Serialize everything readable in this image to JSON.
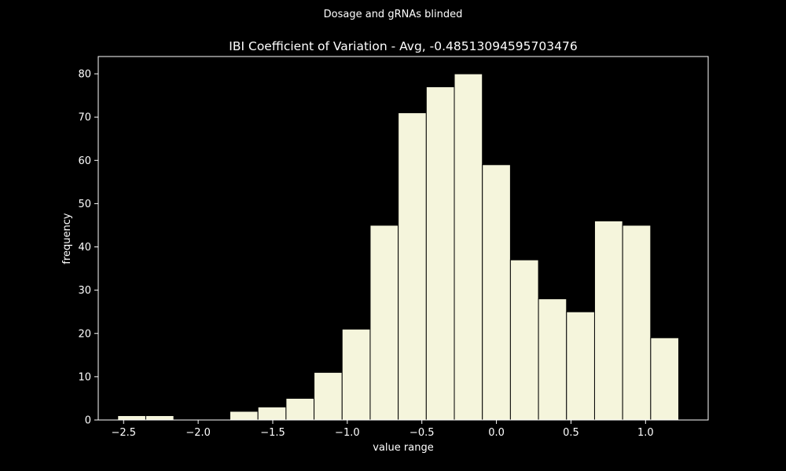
{
  "colors": {
    "background": "#000000",
    "bar_fill": "#f5f5dc",
    "bar_edge": "#000000",
    "axis": "#ffffff",
    "text": "#ffffff"
  },
  "chart_data": {
    "type": "bar",
    "suptitle": "Dosage and gRNAs blinded",
    "title": "IBI Coefficient of Variation - Avg, -0.48513094595703476",
    "xlabel": "value range",
    "ylabel": "frequency",
    "xlim": [
      -2.67,
      1.42
    ],
    "ylim": [
      0,
      84
    ],
    "grid": false,
    "bin_edges": [
      -2.5395,
      -2.3514,
      -2.1633,
      -1.9752,
      -1.7871,
      -1.599,
      -1.4109,
      -1.2228,
      -1.0347,
      -0.8466,
      -0.6585,
      -0.4704,
      -0.2823,
      -0.0942,
      0.0939,
      0.282,
      0.4701,
      0.6582,
      0.8463,
      1.0344,
      1.2225
    ],
    "values": [
      1,
      1,
      0,
      0,
      2,
      3,
      5,
      11,
      21,
      45,
      71,
      77,
      80,
      59,
      37,
      28,
      25,
      46,
      45,
      19
    ],
    "xticks": [
      -2.5,
      -2.0,
      -1.5,
      -1.0,
      -0.5,
      0.0,
      0.5,
      1.0
    ],
    "xtick_labels": [
      "−2.5",
      "−2.0",
      "−1.5",
      "−1.0",
      "−0.5",
      "0.0",
      "0.5",
      "1.0"
    ],
    "yticks": [
      0,
      10,
      20,
      30,
      40,
      50,
      60,
      70,
      80
    ],
    "ytick_labels": [
      "0",
      "10",
      "20",
      "30",
      "40",
      "50",
      "60",
      "70",
      "80"
    ]
  }
}
